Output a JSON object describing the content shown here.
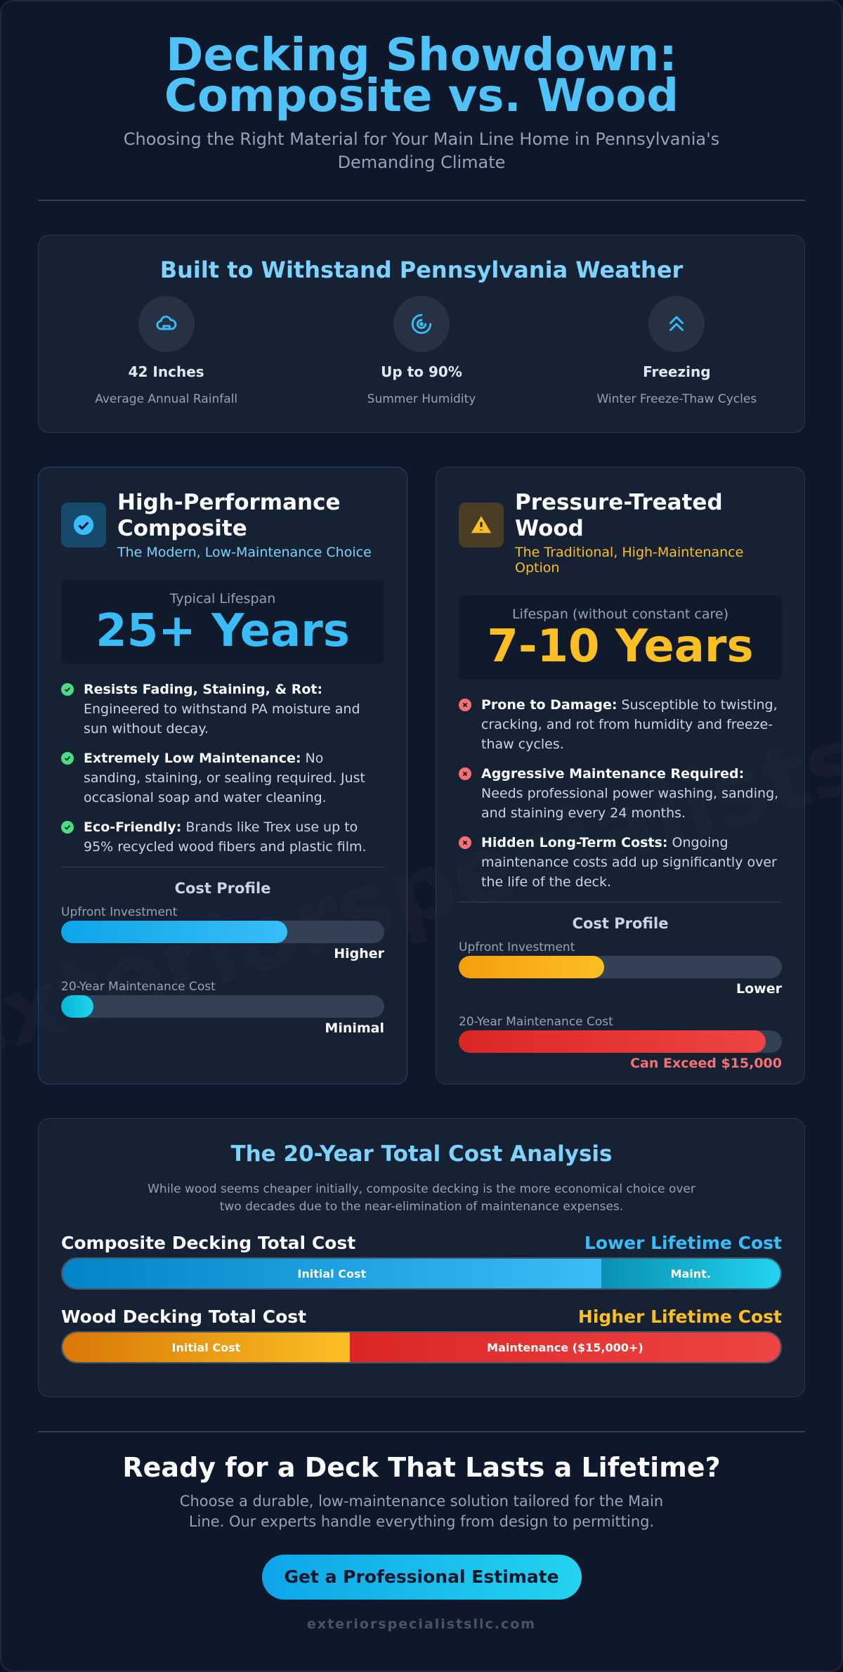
{
  "header": {
    "title": "Decking Showdown: Composite vs. Wood",
    "subtitle": "Choosing the Right Material for Your Main Line Home in Pennsylvania's Demanding Climate"
  },
  "weather": {
    "title": "Built to Withstand Pennsylvania Weather",
    "stats": [
      {
        "value": "42 Inches",
        "label": "Average Annual Rainfall"
      },
      {
        "value": "Up to 90%",
        "label": "Summer Humidity"
      },
      {
        "value": "Freezing",
        "label": "Winter Freeze-Thaw Cycles"
      }
    ]
  },
  "cards": [
    {
      "title": "High-Performance Composite",
      "subtitle": "The Modern, Low-Maintenance Choice",
      "lifespan_label": "Typical Lifespan",
      "lifespan": "25+ Years",
      "points": [
        {
          "bold": "Resists Fading, Staining, & Rot:",
          "text": "Engineered to withstand PA moisture and sun without decay."
        },
        {
          "bold": "Extremely Low Maintenance:",
          "text": "No sanding, staining, or sealing required. Just occasional soap and water cleaning."
        },
        {
          "bold": "Eco-Friendly:",
          "text": "Brands like Trex use up to 95% recycled wood fibers and plastic film."
        }
      ],
      "cost_title": "Cost Profile",
      "costs": [
        {
          "label": "Upfront Investment",
          "value": "Higher"
        },
        {
          "label": "20-Year Maintenance Cost",
          "value": "Minimal"
        }
      ]
    },
    {
      "title": "Pressure-Treated Wood",
      "subtitle": "The Traditional, High-Maintenance Option",
      "lifespan_label": "Lifespan (without constant care)",
      "lifespan": "7-10 Years",
      "points": [
        {
          "bold": "Prone to Damage:",
          "text": "Susceptible to twisting, cracking, and rot from humidity and freeze-thaw cycles."
        },
        {
          "bold": "Aggressive Maintenance Required:",
          "text": "Needs professional power washing, sanding, and staining every 24 months."
        },
        {
          "bold": "Hidden Long-Term Costs:",
          "text": "Ongoing maintenance costs add up significantly over the life of the deck."
        }
      ],
      "cost_title": "Cost Profile",
      "costs": [
        {
          "label": "Upfront Investment",
          "value": "Lower"
        },
        {
          "label": "20-Year Maintenance Cost",
          "value": "Can Exceed $15,000"
        }
      ]
    }
  ],
  "analysis": {
    "title": "The 20-Year Total Cost Analysis",
    "description": "While wood seems cheaper initially, composite decking is the more economical choice over two decades due to the near-elimination of maintenance expenses.",
    "rows": [
      {
        "label": "Composite Decking Total Cost",
        "tag": "Lower Lifetime Cost",
        "segments": [
          "Initial Cost",
          "Maint."
        ]
      },
      {
        "label": "Wood Decking Total Cost",
        "tag": "Higher Lifetime Cost",
        "segments": [
          "Initial Cost",
          "Maintenance ($15,000+)"
        ]
      }
    ]
  },
  "cta": {
    "title": "Ready for a Deck That Lasts a Lifetime?",
    "text": "Choose a durable, low-maintenance solution tailored for the Main Line. Our experts handle everything from design to permitting.",
    "button": "Get a Professional Estimate",
    "site": "exteriorspecialistsllc.com"
  },
  "watermark": "exteriorspecialistsllc.com"
}
